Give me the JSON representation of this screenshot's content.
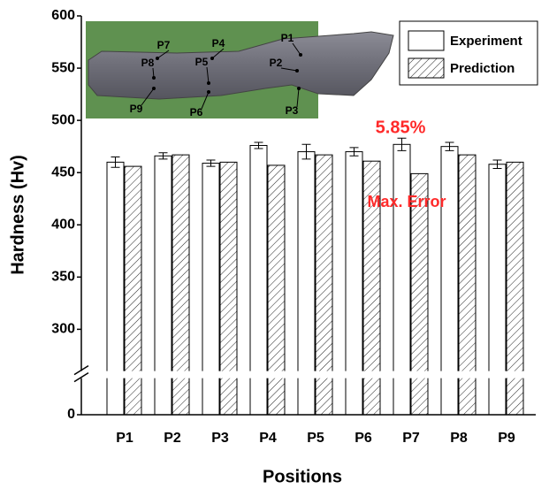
{
  "chart_data": {
    "type": "bar",
    "x_label": "Positions",
    "y_label": "Hardness (Hv)",
    "categories": [
      "P1",
      "P2",
      "P3",
      "P4",
      "P5",
      "P6",
      "P7",
      "P8",
      "P9"
    ],
    "series": [
      {
        "name": "Experiment",
        "color": "#ffffff",
        "values": [
          460,
          466,
          459,
          476,
          470,
          470,
          477,
          475,
          458
        ],
        "errors": [
          5,
          3,
          3,
          3,
          7,
          4,
          6,
          4,
          4
        ]
      },
      {
        "name": "Prediction",
        "color": "#ffffff",
        "hatch": true,
        "values": [
          456,
          467,
          460,
          457,
          467,
          461,
          449,
          467,
          460
        ]
      }
    ],
    "ylim": [
      0,
      600
    ],
    "axis_break": [
      35,
      260
    ],
    "yticks": [
      0,
      300,
      350,
      400,
      450,
      500,
      550,
      600
    ],
    "legend": "upper right",
    "annotations": [
      {
        "text": "5.85%",
        "color": "#ff2a2a"
      },
      {
        "text": "Max. Error",
        "color": "#ff2a2a"
      }
    ],
    "inset_labels": [
      "P1",
      "P2",
      "P3",
      "P4",
      "P5",
      "P6",
      "P7",
      "P8",
      "P9"
    ]
  }
}
